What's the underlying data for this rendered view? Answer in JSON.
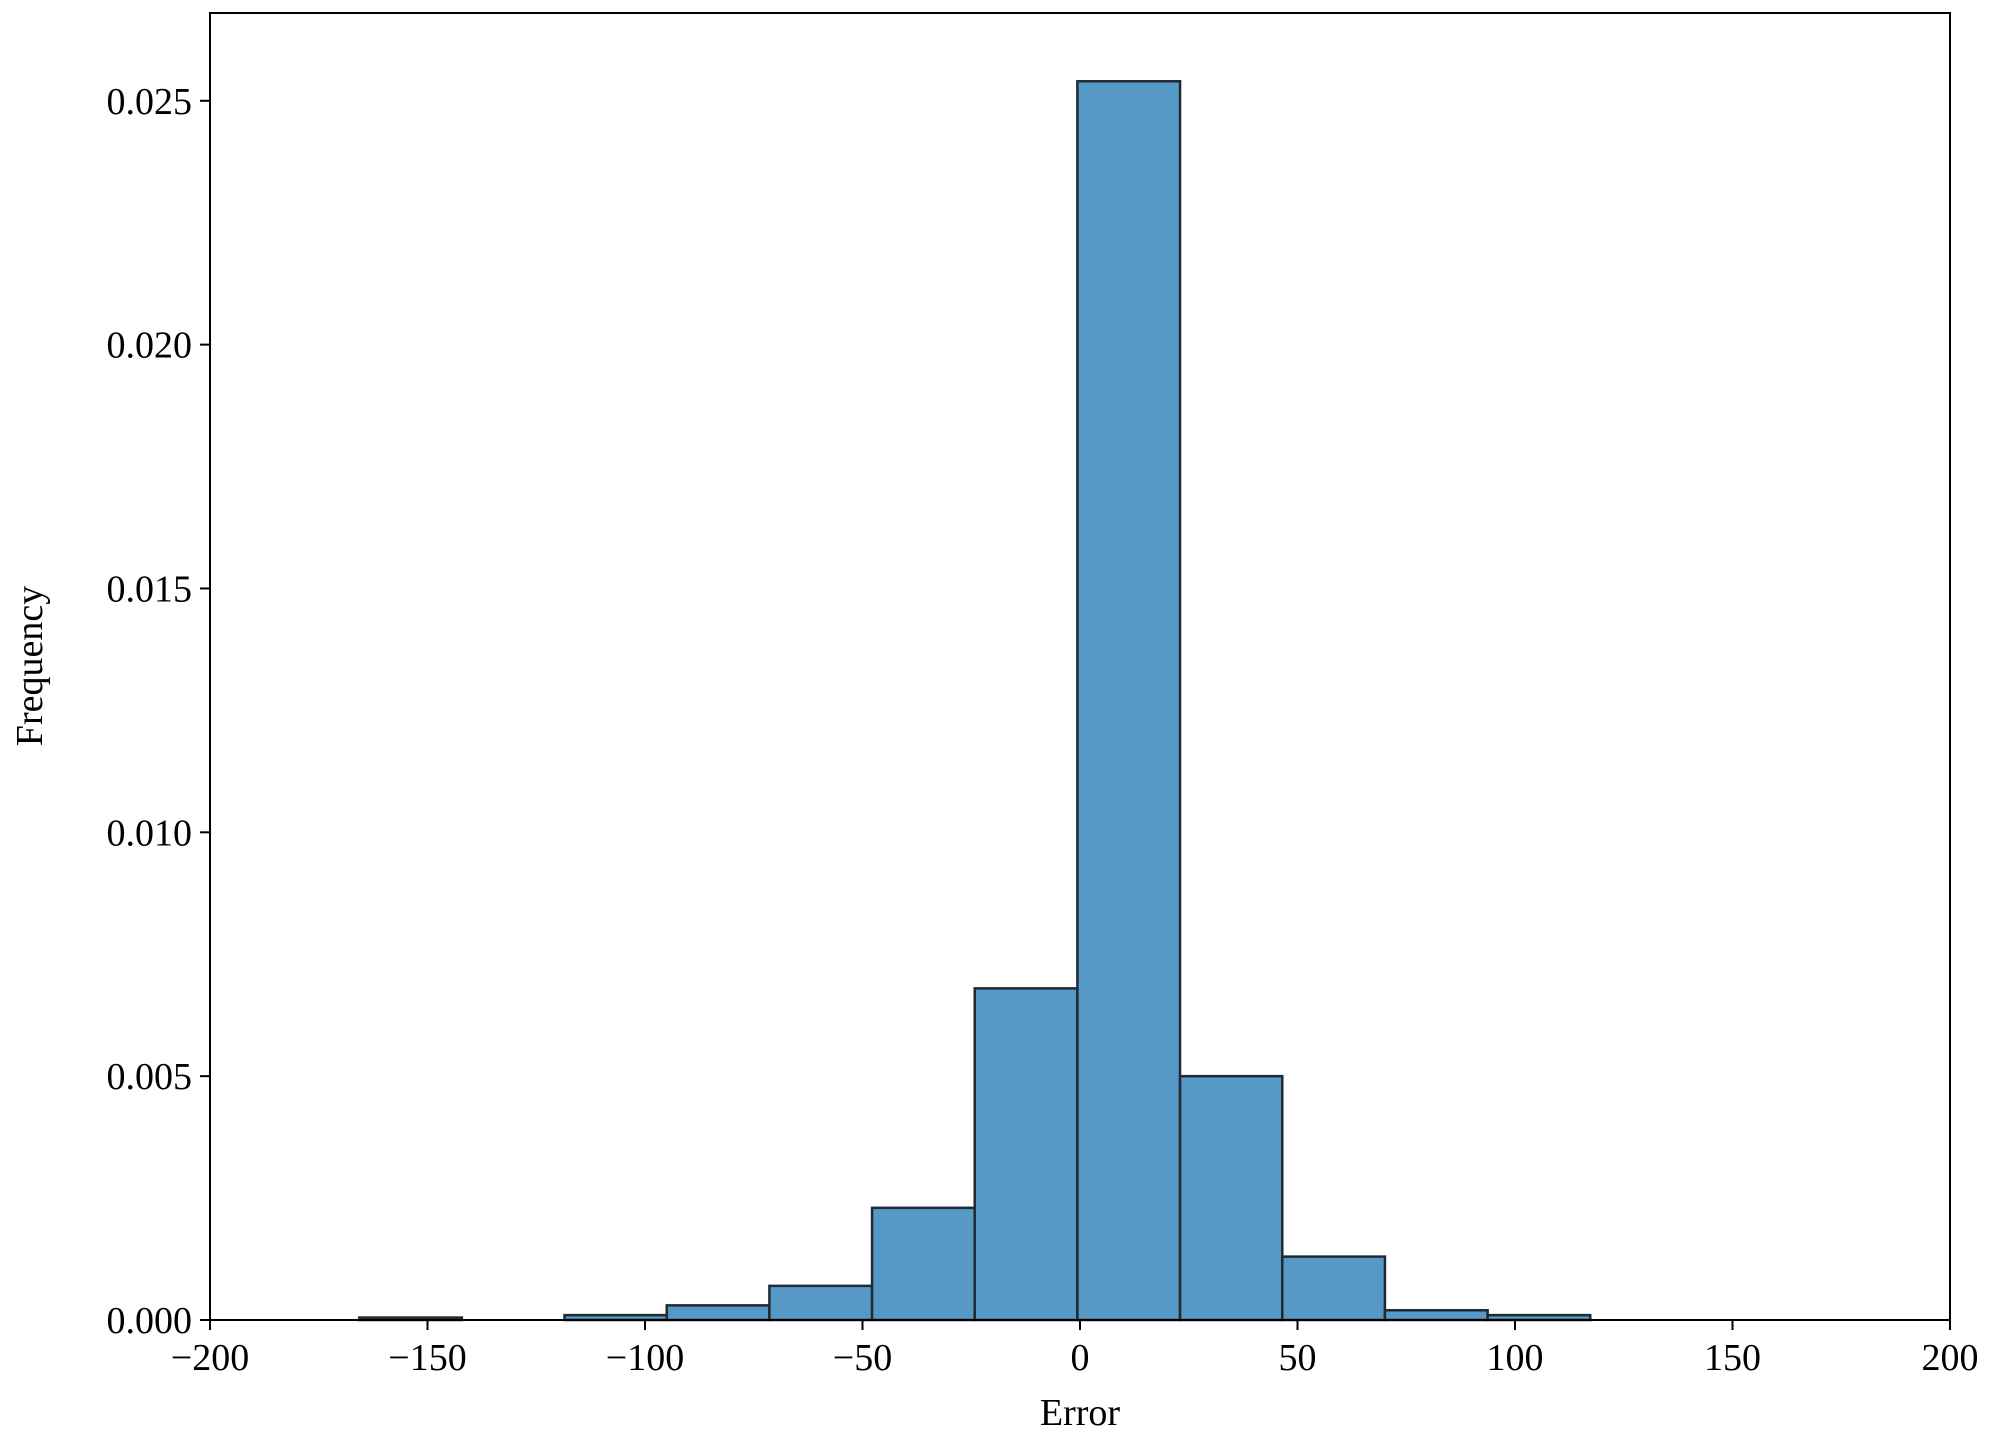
{
  "chart_data": {
    "type": "histogram",
    "x_label": "Error",
    "y_label": "Frequency",
    "bins": [
      -165.7,
      -142.1,
      -118.5,
      -95.0,
      -71.4,
      -47.8,
      -24.2,
      -0.6,
      23.0,
      46.5,
      70.1,
      93.7,
      117.3
    ],
    "values": [
      5e-05,
      0,
      0.0001,
      0.0003,
      0.0007,
      0.0023,
      0.0068,
      0.0254,
      0.005,
      0.0013,
      0.0002,
      0.0001
    ],
    "color": "#5698c6",
    "edgecolor": "#1f2a33",
    "xlim": [
      -200,
      200
    ],
    "xticks": [
      {
        "value": -200,
        "label": "−200"
      },
      {
        "value": -150,
        "label": "−150"
      },
      {
        "value": -100,
        "label": "−100"
      },
      {
        "value": -50,
        "label": "−50"
      },
      0,
      50,
      100,
      150,
      200
    ],
    "ylim": [
      0,
      0.0268
    ],
    "yticks": [
      {
        "value": 0,
        "label": "0.000"
      },
      {
        "value": 0.005,
        "label": "0.005"
      },
      {
        "value": 0.01,
        "label": "0.010"
      },
      {
        "value": 0.015,
        "label": "0.015"
      },
      {
        "value": 0.02,
        "label": "0.020"
      },
      {
        "value": 0.025,
        "label": "0.025"
      }
    ]
  }
}
